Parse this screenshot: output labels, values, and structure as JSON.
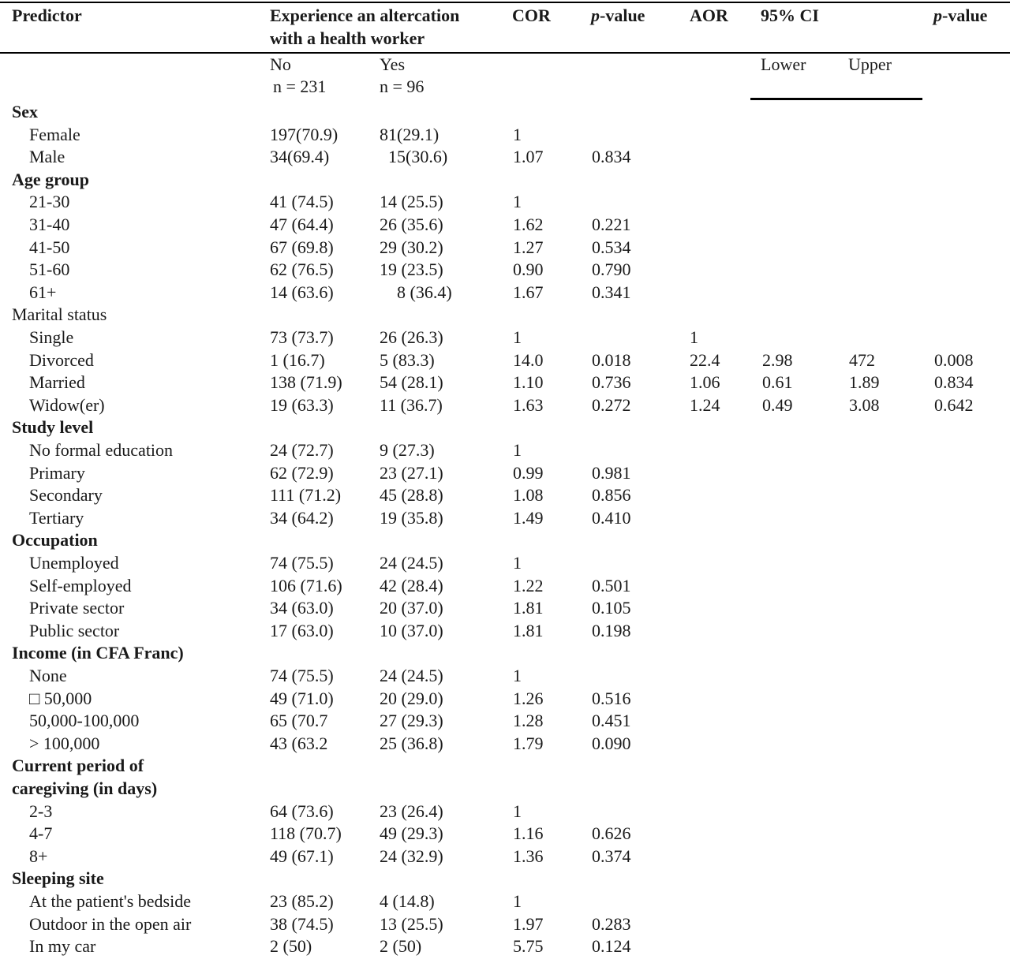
{
  "header": {
    "predictor": "Predictor",
    "experience_line1": "Experience an altercation",
    "experience_line2": "with a health worker",
    "cor": "COR",
    "pvalue1_italic": "p",
    "pvalue1_rest": "-value",
    "aor": "AOR",
    "ci": "95% CI",
    "pvalue2_italic": "p",
    "pvalue2_rest": "-value"
  },
  "subheader": {
    "no": "No",
    "no_n": "n = 231",
    "yes": "Yes",
    "yes_n": "n = 96",
    "lower": "Lower",
    "upper": "Upper"
  },
  "rows": [
    {
      "type": "group",
      "label": "Sex"
    },
    {
      "type": "item",
      "label": "Female",
      "no": "197(70.9)",
      "yes": "81(29.1)",
      "cor": "1",
      "p1": "",
      "aor": "",
      "lower": "",
      "upper": "",
      "p2": ""
    },
    {
      "type": "item",
      "label": "Male",
      "no": "34(69.4)",
      "yes": "  15(30.6)",
      "cor": "1.07",
      "p1": "0.834",
      "aor": "",
      "lower": "",
      "upper": "",
      "p2": ""
    },
    {
      "type": "group",
      "label": "Age group"
    },
    {
      "type": "item",
      "label": "21-30",
      "no": "41 (74.5)",
      "yes": "14 (25.5)",
      "cor": "1",
      "p1": "",
      "aor": "",
      "lower": "",
      "upper": "",
      "p2": ""
    },
    {
      "type": "item",
      "label": "31-40",
      "no": "47 (64.4)",
      "yes": "26 (35.6)",
      "cor": "1.62",
      "p1": "0.221",
      "aor": "",
      "lower": "",
      "upper": "",
      "p2": ""
    },
    {
      "type": "item",
      "label": "41-50",
      "no": "67 (69.8)",
      "yes": "29 (30.2)",
      "cor": "1.27",
      "p1": "0.534",
      "aor": "",
      "lower": "",
      "upper": "",
      "p2": ""
    },
    {
      "type": "item",
      "label": "51-60",
      "no": "62 (76.5)",
      "yes": "19 (23.5)",
      "cor": "0.90",
      "p1": "0.790",
      "aor": "",
      "lower": "",
      "upper": "",
      "p2": ""
    },
    {
      "type": "item",
      "label": "61+",
      "no": "14 (63.6)",
      "yes": "    8 (36.4)",
      "cor": "1.67",
      "p1": "0.341",
      "aor": "",
      "lower": "",
      "upper": "",
      "p2": ""
    },
    {
      "type": "plain-group",
      "label": "Marital status"
    },
    {
      "type": "item",
      "label": "Single",
      "no": "73 (73.7)",
      "yes": "26 (26.3)",
      "cor": "1",
      "p1": "",
      "aor": "1",
      "lower": "",
      "upper": "",
      "p2": ""
    },
    {
      "type": "item",
      "label": "Divorced",
      "no": "1 (16.7)",
      "yes": "5 (83.3)",
      "cor": "14.0",
      "p1": "0.018",
      "aor": "22.4",
      "lower": "2.98",
      "upper": "472",
      "p2": "0.008"
    },
    {
      "type": "item",
      "label": "Married",
      "no": "138 (71.9)",
      "yes": "54 (28.1)",
      "cor": "1.10",
      "p1": "0.736",
      "aor": "1.06",
      "lower": "0.61",
      "upper": "1.89",
      "p2": "0.834"
    },
    {
      "type": "item",
      "label": "Widow(er)",
      "no": "19 (63.3)",
      "yes": "11 (36.7)",
      "cor": "1.63",
      "p1": "0.272",
      "aor": "1.24",
      "lower": "0.49",
      "upper": "3.08",
      "p2": "0.642"
    },
    {
      "type": "group",
      "label": "Study level"
    },
    {
      "type": "item",
      "label": "No formal education",
      "no": "24 (72.7)",
      "yes": "9 (27.3)",
      "cor": "1",
      "p1": "",
      "aor": "",
      "lower": "",
      "upper": "",
      "p2": ""
    },
    {
      "type": "item",
      "label": "Primary",
      "no": "62 (72.9)",
      "yes": "23 (27.1)",
      "cor": "0.99",
      "p1": "0.981",
      "aor": "",
      "lower": "",
      "upper": "",
      "p2": ""
    },
    {
      "type": "item",
      "label": "Secondary",
      "no": "111 (71.2)",
      "yes": "45 (28.8)",
      "cor": "1.08",
      "p1": "0.856",
      "aor": "",
      "lower": "",
      "upper": "",
      "p2": ""
    },
    {
      "type": "item",
      "label": "Tertiary",
      "no": "34 (64.2)",
      "yes": "19 (35.8)",
      "cor": "1.49",
      "p1": "0.410",
      "aor": "",
      "lower": "",
      "upper": "",
      "p2": ""
    },
    {
      "type": "group",
      "label": "Occupation"
    },
    {
      "type": "item",
      "label": "Unemployed",
      "no": "74 (75.5)",
      "yes": "24 (24.5)",
      "cor": "1",
      "p1": "",
      "aor": "",
      "lower": "",
      "upper": "",
      "p2": ""
    },
    {
      "type": "item",
      "label": "Self-employed",
      "no": "106 (71.6)",
      "yes": "42 (28.4)",
      "cor": "1.22",
      "p1": "0.501",
      "aor": "",
      "lower": "",
      "upper": "",
      "p2": ""
    },
    {
      "type": "item",
      "label": "Private sector",
      "no": "34 (63.0)",
      "yes": "20 (37.0)",
      "cor": "1.81",
      "p1": "0.105",
      "aor": "",
      "lower": "",
      "upper": "",
      "p2": ""
    },
    {
      "type": "item",
      "label": "Public sector",
      "no": "17 (63.0)",
      "yes": "10 (37.0)",
      "cor": "1.81",
      "p1": "0.198",
      "aor": "",
      "lower": "",
      "upper": "",
      "p2": ""
    },
    {
      "type": "group",
      "label": "Income (in CFA Franc)"
    },
    {
      "type": "item",
      "label": "None",
      "no": "74 (75.5)",
      "yes": "24 (24.5)",
      "cor": "1",
      "p1": "",
      "aor": "",
      "lower": "",
      "upper": "",
      "p2": ""
    },
    {
      "type": "item",
      "label": "□ 50,000",
      "no": "49 (71.0)",
      "yes": "20 (29.0)",
      "cor": "1.26",
      "p1": "0.516",
      "aor": "",
      "lower": "",
      "upper": "",
      "p2": ""
    },
    {
      "type": "item",
      "label": "50,000-100,000",
      "no": "65 (70.7",
      "yes": "27 (29.3)",
      "cor": "1.28",
      "p1": "0.451",
      "aor": "",
      "lower": "",
      "upper": "",
      "p2": ""
    },
    {
      "type": "item",
      "label": "> 100,000",
      "no": "43 (63.2",
      "yes": "25 (36.8)",
      "cor": "1.79",
      "p1": "0.090",
      "aor": "",
      "lower": "",
      "upper": "",
      "p2": ""
    },
    {
      "type": "group",
      "label": "Current period of"
    },
    {
      "type": "group",
      "label": "caregiving (in days)"
    },
    {
      "type": "item",
      "label": "2-3",
      "no": "64 (73.6)",
      "yes": "23 (26.4)",
      "cor": "1",
      "p1": "",
      "aor": "",
      "lower": "",
      "upper": "",
      "p2": ""
    },
    {
      "type": "item",
      "label": "4-7",
      "no": "118 (70.7)",
      "yes": "49 (29.3)",
      "cor": "1.16",
      "p1": "0.626",
      "aor": "",
      "lower": "",
      "upper": "",
      "p2": ""
    },
    {
      "type": "item",
      "label": "8+",
      "no": "49 (67.1)",
      "yes": "24 (32.9)",
      "cor": "1.36",
      "p1": "0.374",
      "aor": "",
      "lower": "",
      "upper": "",
      "p2": ""
    },
    {
      "type": "group",
      "label": "Sleeping site"
    },
    {
      "type": "item",
      "label": "At the patient's bedside",
      "no": "23 (85.2)",
      "yes": "4 (14.8)",
      "cor": "1",
      "p1": "",
      "aor": "",
      "lower": "",
      "upper": "",
      "p2": ""
    },
    {
      "type": "item",
      "label": "Outdoor in the open air",
      "no": "38 (74.5)",
      "yes": "13 (25.5)",
      "cor": "1.97",
      "p1": "0.283",
      "aor": "",
      "lower": "",
      "upper": "",
      "p2": ""
    },
    {
      "type": "item",
      "label": "In my car",
      "no": "2 (50)",
      "yes": "2 (50)",
      "cor": "5.75",
      "p1": "0.124",
      "aor": "",
      "lower": "",
      "upper": "",
      "p2": ""
    }
  ]
}
